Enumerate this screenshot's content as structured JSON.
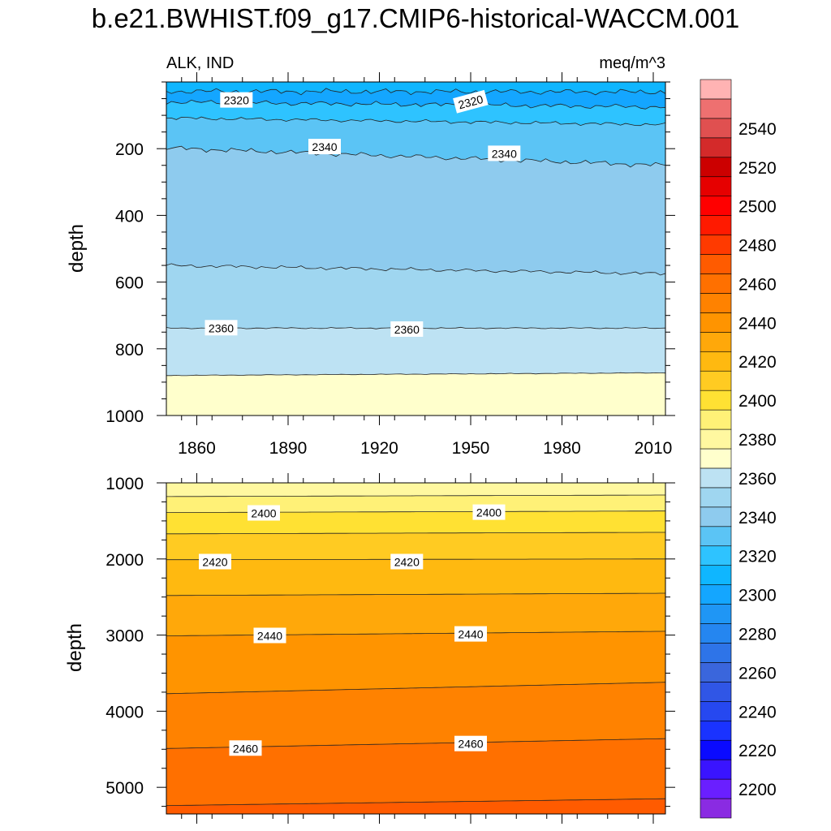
{
  "chart_data": {
    "type": "contour",
    "title": "b.e21.BWHIST.f09_g17.CMIP6-historical-WACCM.001",
    "variable_label": "ALK, IND",
    "units_label": "meq/m^3",
    "xlabel": "",
    "ylabel": "depth",
    "x_range": [
      1850,
      2014
    ],
    "x_ticks": [
      1860,
      1890,
      1920,
      1950,
      1980,
      2010
    ],
    "panels": [
      {
        "name": "upper",
        "ylim": [
          0,
          1000
        ],
        "y_ticks": [
          200,
          400,
          600,
          800,
          1000
        ],
        "background_level": 2310,
        "contours": [
          {
            "level": 2310,
            "fill": "#14a6ff",
            "depth_start": 28,
            "depth_end": 30,
            "roughness": 8
          },
          {
            "level": 2320,
            "fill": "#2ec3ff",
            "depth_start": 60,
            "depth_end": 75,
            "roughness": 7
          },
          {
            "level": 2330,
            "fill": "#5bc4f5",
            "depth_start": 108,
            "depth_end": 128,
            "roughness": 5
          },
          {
            "level": 2340,
            "fill": "#8ecbee",
            "depth_start": 198,
            "depth_end": 250,
            "roughness": 7
          },
          {
            "level": 2350,
            "fill": "#9fd6f0",
            "depth_start": 550,
            "depth_end": 575,
            "roughness": 5
          },
          {
            "level": 2360,
            "fill": "#bde2f3",
            "depth_start": 738,
            "depth_end": 738,
            "roughness": 2
          },
          {
            "level": 2370,
            "fill": "#ffffcc",
            "depth_start": 880,
            "depth_end": 872,
            "roughness": 1
          }
        ],
        "labels": [
          {
            "text": "2320",
            "x": 1873,
            "y": 55
          },
          {
            "text": "2320",
            "x": 1950,
            "y": 60,
            "rotate": -15
          },
          {
            "text": "2340",
            "x": 1902,
            "y": 195
          },
          {
            "text": "2340",
            "x": 1961,
            "y": 215
          },
          {
            "text": "2360",
            "x": 1868,
            "y": 738
          },
          {
            "text": "2360",
            "x": 1929,
            "y": 742
          }
        ]
      },
      {
        "name": "lower",
        "ylim": [
          1000,
          5350
        ],
        "y_ticks": [
          1000,
          2000,
          3000,
          4000,
          5000
        ],
        "background_level": 2380,
        "contours": [
          {
            "level": 2390,
            "fill": "#fff177",
            "depth_start": 1180,
            "depth_end": 1160,
            "roughness": 0
          },
          {
            "level": 2400,
            "fill": "#ffe133",
            "depth_start": 1390,
            "depth_end": 1370,
            "roughness": 0
          },
          {
            "level": 2410,
            "fill": "#ffcb22",
            "depth_start": 1670,
            "depth_end": 1650,
            "roughness": 0
          },
          {
            "level": 2420,
            "fill": "#ffb910",
            "depth_start": 2010,
            "depth_end": 2000,
            "roughness": 0
          },
          {
            "level": 2430,
            "fill": "#ffa80a",
            "depth_start": 2480,
            "depth_end": 2450,
            "roughness": 0
          },
          {
            "level": 2440,
            "fill": "#ff9400",
            "depth_start": 3010,
            "depth_end": 2950,
            "roughness": 0
          },
          {
            "level": 2450,
            "fill": "#ff8200",
            "depth_start": 3770,
            "depth_end": 3620,
            "roughness": 0
          },
          {
            "level": 2460,
            "fill": "#ff7000",
            "depth_start": 4490,
            "depth_end": 4360,
            "roughness": 0
          },
          {
            "level": 2470,
            "fill": "#ff5b00",
            "depth_start": 5240,
            "depth_end": 5150,
            "roughness": 0
          }
        ],
        "labels": [
          {
            "text": "2400",
            "x": 1882,
            "y": 1400
          },
          {
            "text": "2400",
            "x": 1956,
            "y": 1390
          },
          {
            "text": "2420",
            "x": 1866,
            "y": 2040
          },
          {
            "text": "2420",
            "x": 1929,
            "y": 2040
          },
          {
            "text": "2440",
            "x": 1884,
            "y": 3010
          },
          {
            "text": "2440",
            "x": 1950,
            "y": 2990
          },
          {
            "text": "2460",
            "x": 1876,
            "y": 4490
          },
          {
            "text": "2460",
            "x": 1950,
            "y": 4430
          }
        ]
      }
    ],
    "colorbar": {
      "levels": [
        2190,
        2200,
        2210,
        2220,
        2230,
        2240,
        2250,
        2260,
        2270,
        2280,
        2290,
        2300,
        2310,
        2320,
        2330,
        2340,
        2350,
        2360,
        2370,
        2380,
        2390,
        2400,
        2410,
        2420,
        2430,
        2440,
        2450,
        2460,
        2470,
        2480,
        2490,
        2500,
        2510,
        2520,
        2530,
        2540,
        2550,
        2560
      ],
      "labeled_levels": [
        2200,
        2220,
        2240,
        2260,
        2280,
        2300,
        2320,
        2340,
        2360,
        2380,
        2400,
        2420,
        2440,
        2460,
        2480,
        2500,
        2520,
        2540
      ],
      "colors_bottom_to_top": [
        "#8a2be2",
        "#6a1fff",
        "#3a14ff",
        "#0a0aff",
        "#1a33ff",
        "#2648f0",
        "#3056e6",
        "#3a66dc",
        "#2e74e8",
        "#2586f0",
        "#1f96f5",
        "#14a6ff",
        "#0fb6ff",
        "#2ec3ff",
        "#5bc4f5",
        "#8ecbee",
        "#9fd6f0",
        "#bde2f3",
        "#ffffcc",
        "#fff8a0",
        "#fff177",
        "#ffe133",
        "#ffcb22",
        "#ffb910",
        "#ffa80a",
        "#ff9400",
        "#ff8200",
        "#ff7000",
        "#ff5b00",
        "#ff3a00",
        "#ff1a00",
        "#ff0000",
        "#e60000",
        "#cc0000",
        "#d42a2a",
        "#e05050",
        "#ee7070",
        "#ffb3b3"
      ]
    }
  }
}
